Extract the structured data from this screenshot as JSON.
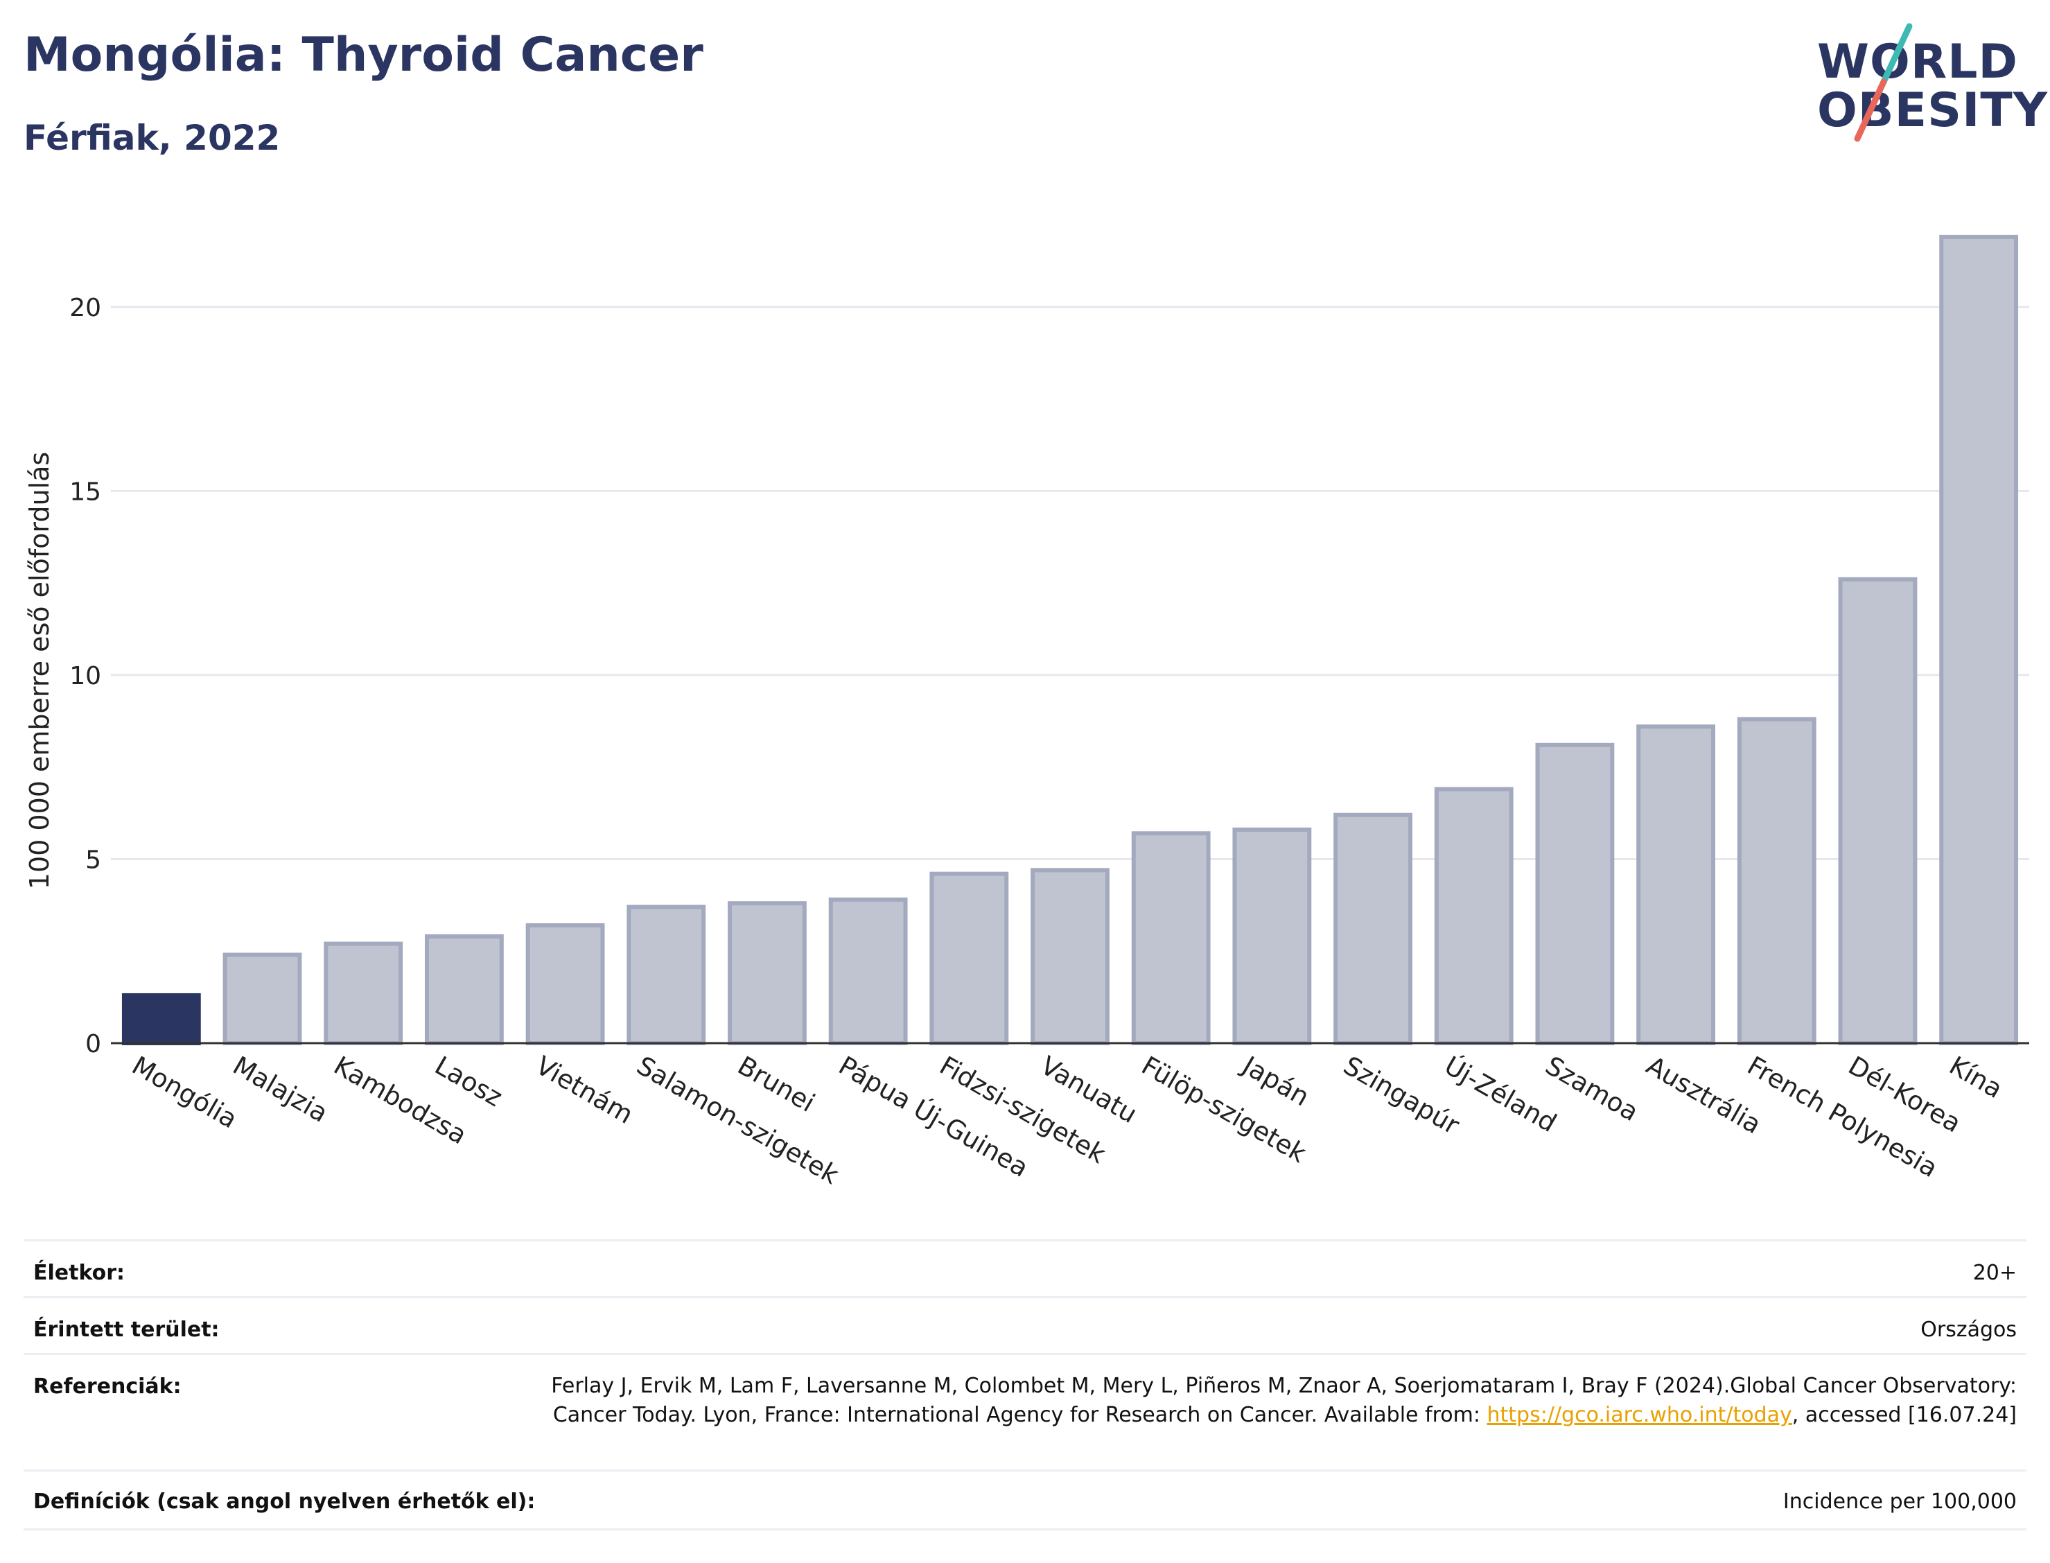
{
  "header": {
    "title": "Mongólia: Thyroid Cancer",
    "subtitle": "Férfiak, 2022"
  },
  "logo": {
    "line1": "WORLD",
    "line2": "OBESITY"
  },
  "colors": {
    "highlight": "#2b3561",
    "bar": "#c0c4d0",
    "bar_stroke": "#a3a9be",
    "title": "#2b3561",
    "link": "#e8a100"
  },
  "chart_data": {
    "type": "bar",
    "ylabel": "100 000 emberre eső előfordulás",
    "ylim": [
      0,
      22.5
    ],
    "yticks": [
      0,
      5,
      10,
      15,
      20
    ],
    "grid": true,
    "highlight_index": 0,
    "categories": [
      "Mongólia",
      "Malajzia",
      "Kambodzsa",
      "Laosz",
      "Vietnám",
      "Salamon-szigetek",
      "Brunei",
      "Pápua Új-Guinea",
      "Fidzsi-szigetek",
      "Vanuatu",
      "Fülöp-szigetek",
      "Japán",
      "Szingapúr",
      "Új-Zéland",
      "Szamoa",
      "Ausztrália",
      "French Polynesia",
      "Dél-Korea",
      "Kína"
    ],
    "values": [
      1.3,
      2.4,
      2.7,
      2.9,
      3.2,
      3.7,
      3.8,
      3.9,
      4.6,
      4.7,
      5.7,
      5.8,
      6.2,
      6.9,
      8.1,
      8.6,
      8.8,
      12.6,
      21.9
    ]
  },
  "info": {
    "age_label": "Életkor:",
    "age_value": "20+",
    "area_label": "Érintett terület:",
    "area_value": "Országos",
    "ref_label": "Referenciák:",
    "ref_text_1": "Ferlay J, Ervik M, Lam F, Laversanne M, Colombet M, Mery L, Piñeros M, Znaor A, Soerjomataram I, Bray F (2024).Global Cancer Observatory: Cancer Today. Lyon, France: International Agency for Research on Cancer. Available from: ",
    "ref_link": "https://gco.iarc.who.int/today",
    "ref_text_2": ", accessed [16.07.24]",
    "def_label": "Definíciók (csak angol nyelven érhetők el):",
    "def_value": "Incidence per 100,000"
  }
}
